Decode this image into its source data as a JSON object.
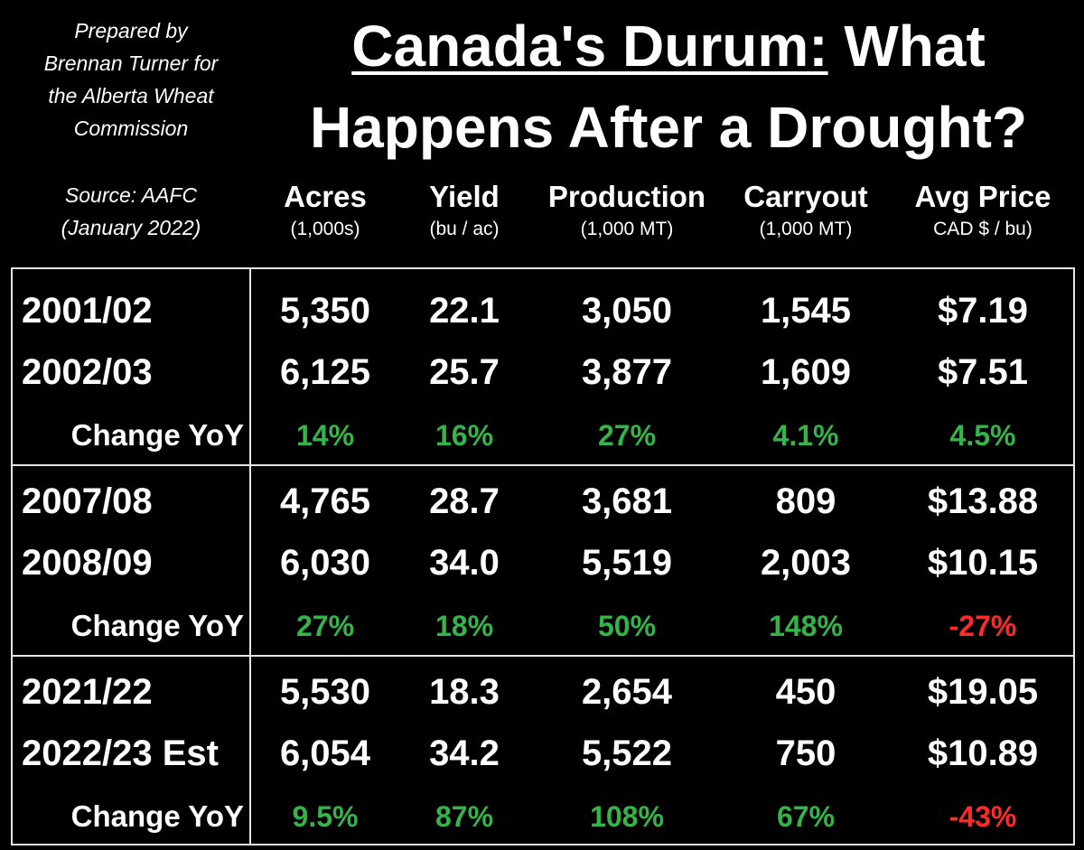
{
  "header": {
    "credit_lines": [
      "Prepared by",
      "Brennan Turner for",
      "the Alberta Wheat",
      "Commission"
    ],
    "source_lines": [
      "Source: AAFC",
      "(January 2022)"
    ],
    "title_underlined": "Canada's Durum:",
    "title_rest_line1": " What",
    "title_line2": "Happens After a Drought?"
  },
  "columns": [
    {
      "label": "Acres",
      "unit": "(1,000s)"
    },
    {
      "label": "Yield",
      "unit": "(bu / ac)"
    },
    {
      "label": "Production",
      "unit": "(1,000 MT)"
    },
    {
      "label": "Carryout",
      "unit": "(1,000 MT)"
    },
    {
      "label": "Avg Price",
      "unit": "CAD $ / bu)"
    }
  ],
  "chart_data": {
    "type": "table",
    "title": "Canada's Durum: What Happens After a Drought?",
    "columns": [
      "Acres (1,000s)",
      "Yield (bu / ac)",
      "Production (1,000 MT)",
      "Carryout (1,000 MT)",
      "Avg Price CAD $ / bu)"
    ],
    "groups": [
      {
        "rows": [
          {
            "label": "2001/02",
            "values": [
              "5,350",
              "22.1",
              "3,050",
              "1,545",
              "$7.19"
            ]
          },
          {
            "label": "2002/03",
            "values": [
              "6,125",
              "25.7",
              "3,877",
              "1,609",
              "$7.51"
            ]
          }
        ],
        "change": {
          "label": "Change YoY",
          "values": [
            "14%",
            "16%",
            "27%",
            "4.1%",
            "4.5%"
          ],
          "signs": [
            "pos",
            "pos",
            "pos",
            "pos",
            "pos"
          ]
        }
      },
      {
        "rows": [
          {
            "label": "2007/08",
            "values": [
              "4,765",
              "28.7",
              "3,681",
              "809",
              "$13.88"
            ]
          },
          {
            "label": "2008/09",
            "values": [
              "6,030",
              "34.0",
              "5,519",
              "2,003",
              "$10.15"
            ]
          }
        ],
        "change": {
          "label": "Change YoY",
          "values": [
            "27%",
            "18%",
            "50%",
            "148%",
            "-27%"
          ],
          "signs": [
            "pos",
            "pos",
            "pos",
            "pos",
            "neg"
          ]
        }
      },
      {
        "rows": [
          {
            "label": "2021/22",
            "values": [
              "5,530",
              "18.3",
              "2,654",
              "450",
              "$19.05"
            ]
          },
          {
            "label": "2022/23 Est",
            "values": [
              "6,054",
              "34.2",
              "5,522",
              "750",
              "$10.89"
            ]
          }
        ],
        "change": {
          "label": "Change YoY",
          "values": [
            "9.5%",
            "87%",
            "108%",
            "67%",
            "-43%"
          ],
          "signs": [
            "pos",
            "pos",
            "pos",
            "pos",
            "neg"
          ]
        }
      }
    ]
  },
  "colors": {
    "positive": "#33b54a",
    "negative": "#ff2a2a",
    "text": "#ffffff",
    "background": "#000000"
  }
}
